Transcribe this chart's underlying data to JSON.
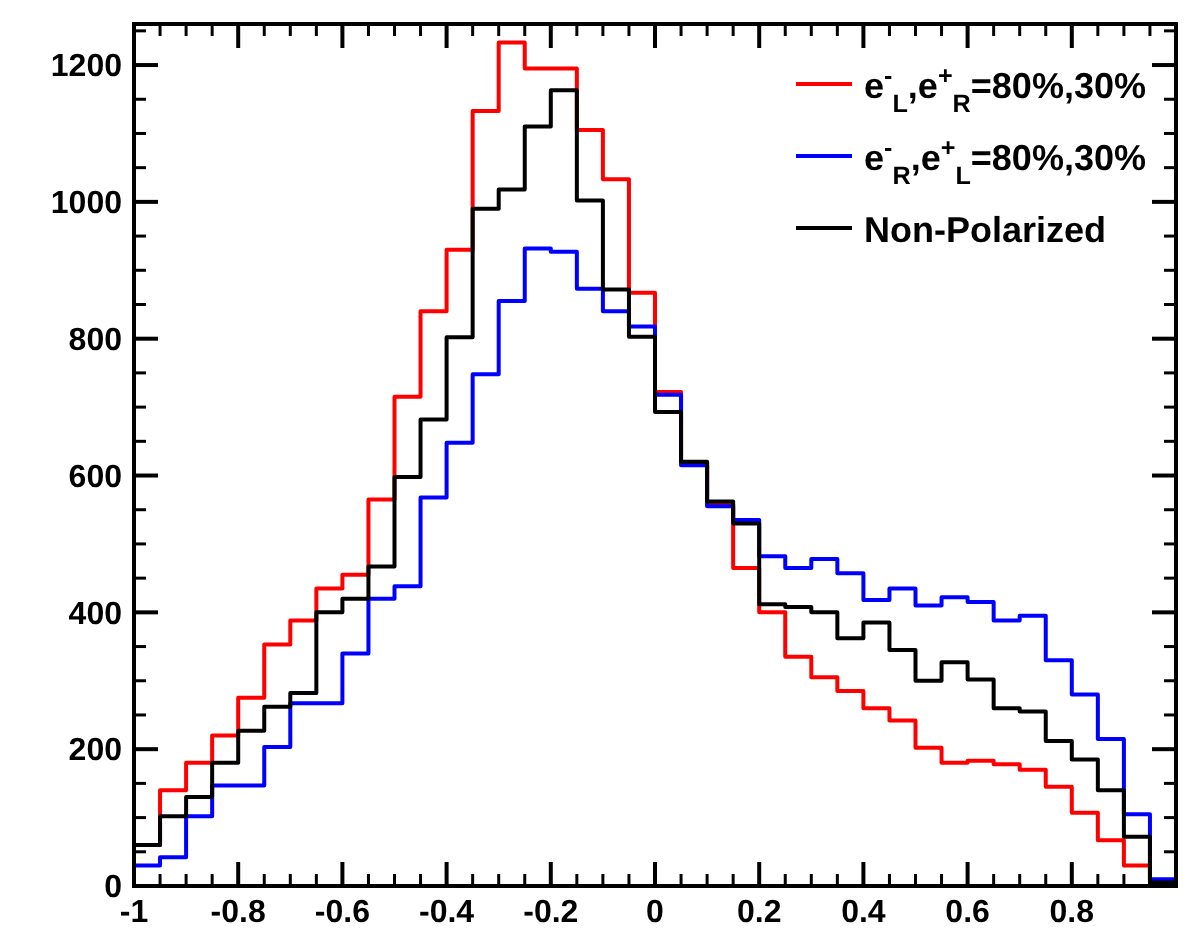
{
  "chart_data": {
    "type": "histogram",
    "bins": [
      -1,
      -0.95,
      -0.9,
      -0.85,
      -0.8,
      -0.75,
      -0.7,
      -0.65,
      -0.6,
      -0.55,
      -0.5,
      -0.45,
      -0.4,
      -0.35,
      -0.3,
      -0.25,
      -0.2,
      -0.15,
      -0.1,
      -0.05,
      0,
      0.05,
      0.1,
      0.15,
      0.2,
      0.25,
      0.3,
      0.35,
      0.4,
      0.45,
      0.5,
      0.55,
      0.6,
      0.65,
      0.7,
      0.75,
      0.8,
      0.85,
      0.9,
      0.95,
      1
    ],
    "series": [
      {
        "name": "e$^{-}$$_{L}$,e$^{+}$$_{R}$=80%,30%",
        "color": "#ff0000",
        "values": [
          60,
          140,
          180,
          220,
          275,
          353,
          388,
          435,
          455,
          565,
          715,
          840,
          930,
          1133,
          1233,
          1195,
          1195,
          1105,
          1033,
          867,
          722,
          618,
          558,
          465,
          400,
          335,
          305,
          285,
          260,
          242,
          202,
          180,
          183,
          178,
          170,
          145,
          107,
          67,
          30,
          5
        ]
      },
      {
        "name": "e$^{-}$$_{R}$,e$^{+}$$_{L}$=80%,30%",
        "color": "#0000ff",
        "values": [
          30,
          42,
          102,
          147,
          147,
          203,
          267,
          267,
          340,
          420,
          438,
          568,
          648,
          748,
          855,
          932,
          927,
          873,
          840,
          818,
          718,
          615,
          555,
          535,
          482,
          465,
          478,
          457,
          418,
          435,
          410,
          422,
          415,
          388,
          395,
          330,
          280,
          215,
          105,
          10
        ]
      },
      {
        "name": "Non-Polarized",
        "color": "#000000",
        "values": [
          60,
          102,
          130,
          180,
          227,
          262,
          282,
          400,
          420,
          467,
          598,
          682,
          802,
          990,
          1018,
          1110,
          1163,
          1002,
          872,
          803,
          693,
          620,
          562,
          530,
          412,
          408,
          400,
          362,
          385,
          345,
          300,
          327,
          302,
          260,
          255,
          212,
          185,
          140,
          72,
          5
        ]
      }
    ],
    "xlim": [
      -1,
      1
    ],
    "xticks": [
      -1,
      -0.8,
      -0.6,
      -0.4,
      -0.2,
      0,
      0.2,
      0.4,
      0.6,
      0.8,
      {
        "value": 1,
        "label": null
      }
    ],
    "ylim": [
      0,
      1260
    ],
    "yticks": [
      0,
      200,
      400,
      600,
      800,
      1000,
      1200
    ],
    "legend": "top right"
  }
}
